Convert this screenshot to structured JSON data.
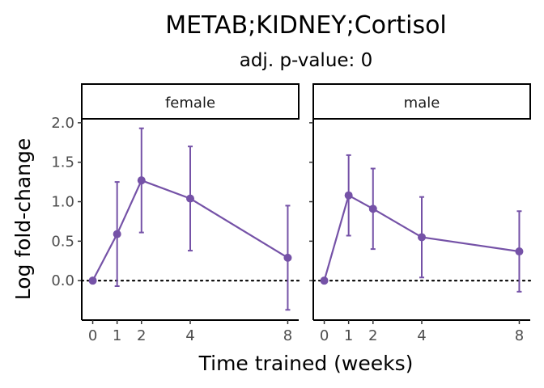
{
  "chart_data": {
    "type": "line",
    "title": "METAB;KIDNEY;Cortisol",
    "subtitle": "adj. p-value: 0",
    "xlabel": "Time trained (weeks)",
    "ylabel": "Log fold-change",
    "x_ticks": [
      0,
      1,
      2,
      4,
      8
    ],
    "x_tick_labels": [
      "0",
      "1",
      "2",
      "4",
      "8"
    ],
    "y_ticks": [
      0.0,
      0.5,
      1.0,
      1.5,
      2.0
    ],
    "y_tick_labels": [
      "0.0",
      "0.5",
      "1.0",
      "1.5",
      "2.0"
    ],
    "xlim": [
      -0.45,
      8.45
    ],
    "ylim": [
      -0.5,
      2.05
    ],
    "reference_line": 0,
    "color": "#7552A7",
    "grid": false,
    "facets": [
      {
        "label": "female",
        "x": [
          0,
          1,
          2,
          4,
          8
        ],
        "y": [
          0.0,
          0.59,
          1.27,
          1.04,
          0.29
        ],
        "lower": [
          0.0,
          -0.07,
          0.61,
          0.38,
          -0.37
        ],
        "upper": [
          0.0,
          1.25,
          1.93,
          1.7,
          0.95
        ]
      },
      {
        "label": "male",
        "x": [
          0,
          1,
          2,
          4,
          8
        ],
        "y": [
          0.0,
          1.08,
          0.91,
          0.55,
          0.37
        ],
        "lower": [
          0.0,
          0.57,
          0.4,
          0.04,
          -0.14
        ],
        "upper": [
          0.0,
          1.59,
          1.42,
          1.06,
          0.88
        ]
      }
    ]
  }
}
